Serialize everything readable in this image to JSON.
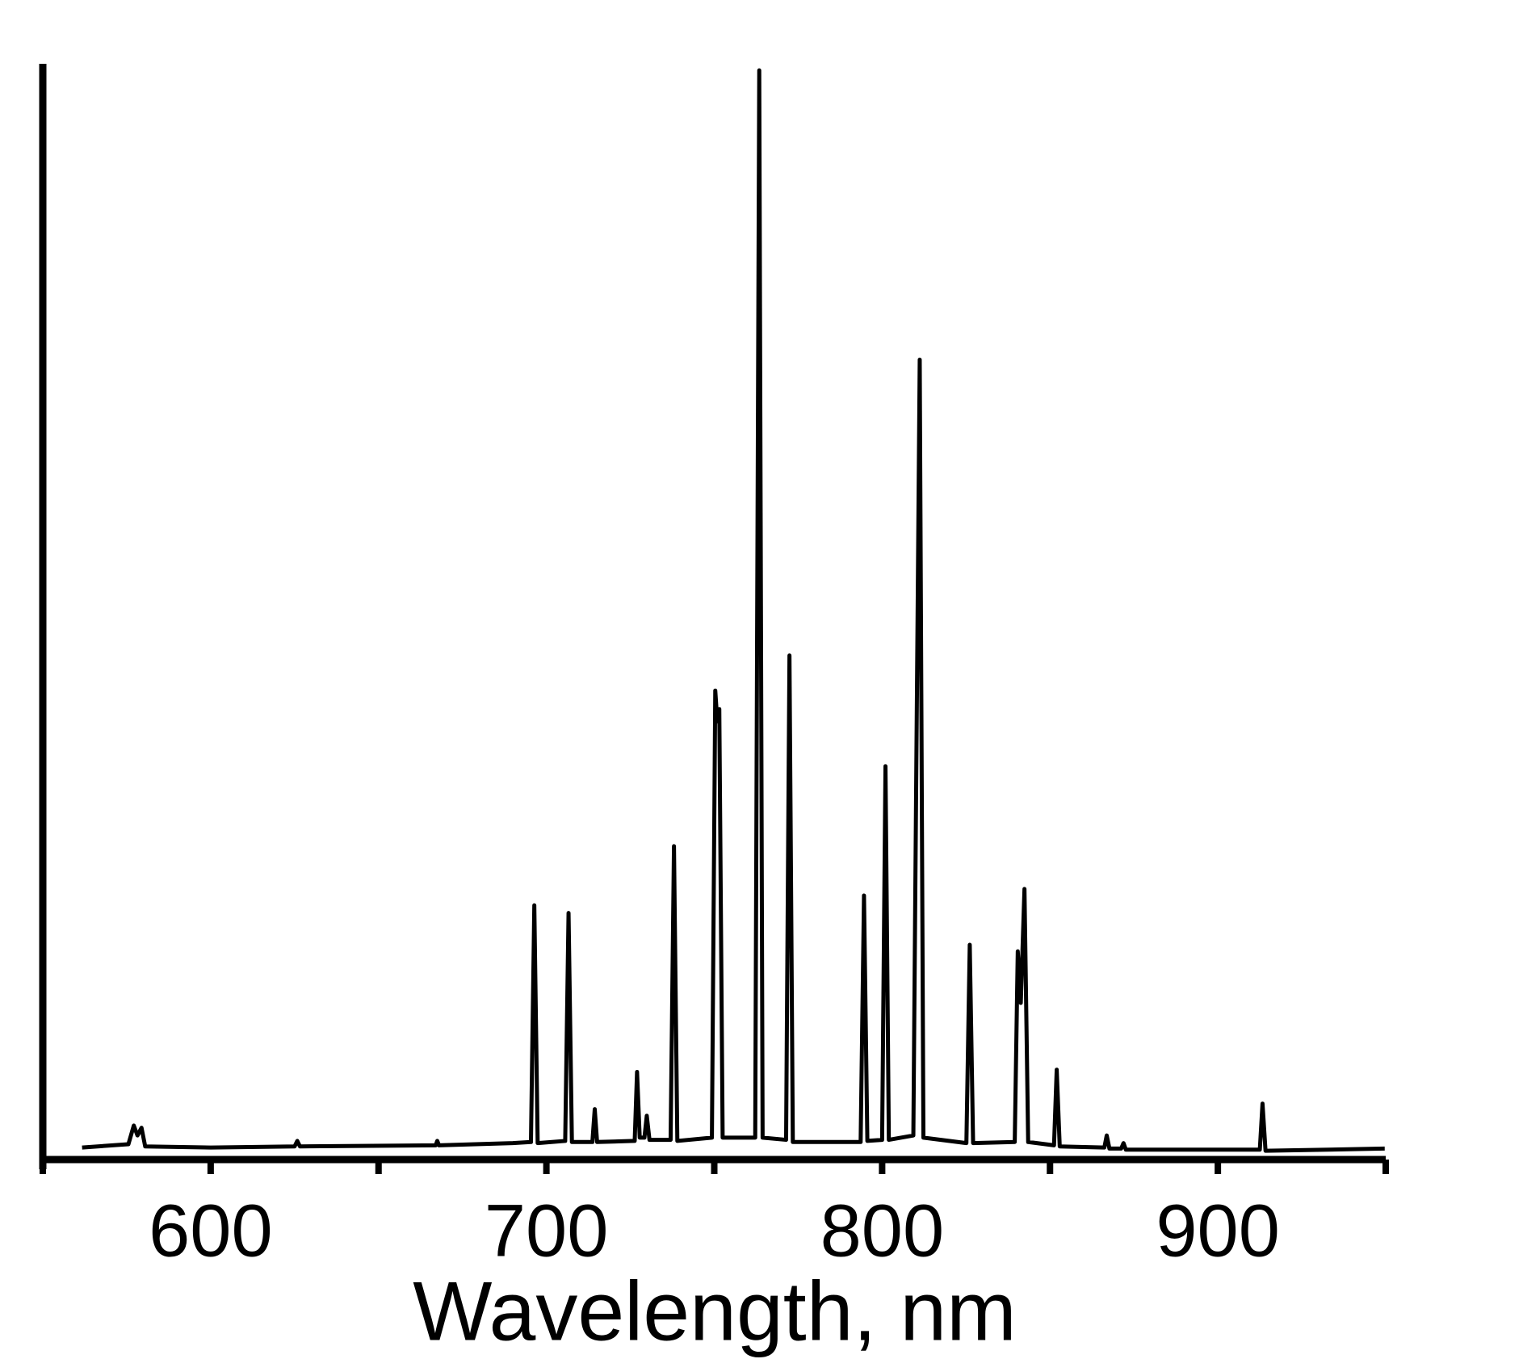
{
  "chart_data": {
    "type": "line",
    "x_label": "Wavelength, nm",
    "xlim": [
      550,
      950
    ],
    "ylim": [
      0,
      100
    ],
    "xticks": [
      600,
      700,
      800,
      900
    ],
    "xticks_minor": [
      550,
      650,
      750,
      850,
      950
    ],
    "color": "#000000",
    "x": [
      561.7,
      575.5,
      577.1,
      578.2,
      579.4,
      580.5,
      600,
      625,
      625.8,
      626.6,
      667,
      667.5,
      668,
      690,
      695.4,
      696.4,
      697.4,
      705.6,
      706.6,
      707.6,
      713.7,
      714.4,
      715.1,
      726.3,
      727.0,
      727.8,
      729.2,
      729.9,
      730.7,
      737.0,
      738.0,
      739.0,
      749.3,
      750.3,
      750.9,
      751.5,
      752.5,
      762.2,
      763.4,
      764.4,
      771.4,
      772.4,
      773.4,
      793.6,
      794.6,
      795.6,
      800.0,
      801.0,
      802.0,
      809.3,
      810.1,
      811.2,
      812.3,
      825.1,
      826.1,
      827.1,
      839.5,
      840.4,
      841.3,
      842.4,
      843.5,
      851.2,
      852.0,
      852.9,
      866.2,
      866.9,
      867.7,
      871.2,
      871.9,
      872.6,
      912.5,
      913.3,
      914.2,
      949.7
    ],
    "values": [
      1.1,
      1.4,
      3.1,
      2.2,
      2.9,
      1.2,
      1.1,
      1.2,
      1.7,
      1.2,
      1.3,
      1.7,
      1.3,
      1.5,
      1.6,
      23.2,
      1.5,
      1.7,
      22.5,
      1.6,
      1.6,
      4.6,
      1.6,
      1.7,
      8.0,
      2.0,
      2.0,
      4.0,
      1.8,
      1.8,
      28.6,
      1.7,
      2.0,
      42.8,
      40.0,
      41.1,
      2.0,
      2.0,
      99.4,
      2.0,
      1.8,
      46.0,
      1.6,
      1.6,
      24.1,
      1.7,
      1.8,
      35.9,
      1.8,
      2.2,
      32.6,
      73.0,
      2.0,
      1.5,
      19.6,
      1.5,
      1.6,
      19.0,
      14.3,
      24.7,
      1.6,
      1.3,
      8.2,
      1.2,
      1.1,
      2.2,
      1.0,
      1.0,
      1.5,
      0.9,
      0.9,
      5.1,
      0.8,
      1.0
    ]
  }
}
